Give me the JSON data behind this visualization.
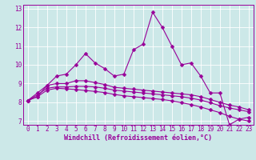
{
  "xlabel": "Windchill (Refroidissement éolien,°C)",
  "background_color": "#cce8e8",
  "grid_color": "#ffffff",
  "line_color": "#990099",
  "x_data": [
    0,
    1,
    2,
    3,
    4,
    5,
    6,
    7,
    8,
    9,
    10,
    11,
    12,
    13,
    14,
    15,
    16,
    17,
    18,
    19,
    20,
    21,
    22,
    23
  ],
  "series1": [
    8.1,
    8.3,
    8.9,
    9.4,
    9.5,
    10.0,
    10.6,
    10.1,
    9.8,
    9.4,
    9.5,
    10.8,
    11.1,
    12.8,
    12.0,
    11.0,
    10.0,
    10.1,
    9.4,
    8.5,
    8.5,
    6.8,
    7.1,
    7.2
  ],
  "series2": [
    8.1,
    8.5,
    8.9,
    9.0,
    9.0,
    9.15,
    9.15,
    9.05,
    8.95,
    8.8,
    8.75,
    8.7,
    8.65,
    8.6,
    8.55,
    8.5,
    8.45,
    8.4,
    8.3,
    8.15,
    8.0,
    7.85,
    7.75,
    7.6
  ],
  "series3": [
    8.1,
    8.4,
    8.75,
    8.82,
    8.82,
    8.85,
    8.85,
    8.82,
    8.75,
    8.65,
    8.6,
    8.55,
    8.5,
    8.45,
    8.4,
    8.35,
    8.3,
    8.22,
    8.12,
    7.98,
    7.82,
    7.7,
    7.6,
    7.5
  ],
  "series4": [
    8.1,
    8.3,
    8.65,
    8.75,
    8.72,
    8.68,
    8.63,
    8.58,
    8.52,
    8.42,
    8.35,
    8.3,
    8.25,
    8.2,
    8.15,
    8.08,
    7.98,
    7.88,
    7.75,
    7.6,
    7.45,
    7.25,
    7.1,
    7.0
  ],
  "ylim": [
    6.8,
    13.2
  ],
  "xlim": [
    -0.5,
    23.5
  ],
  "yticks": [
    7,
    8,
    9,
    10,
    11,
    12,
    13
  ],
  "xticks": [
    0,
    1,
    2,
    3,
    4,
    5,
    6,
    7,
    8,
    9,
    10,
    11,
    12,
    13,
    14,
    15,
    16,
    17,
    18,
    19,
    20,
    21,
    22,
    23
  ],
  "marker": "D",
  "markersize": 2.5,
  "linewidth": 0.8,
  "font_color": "#990099",
  "tick_fontsize": 5.5,
  "xlabel_fontsize": 6.0
}
